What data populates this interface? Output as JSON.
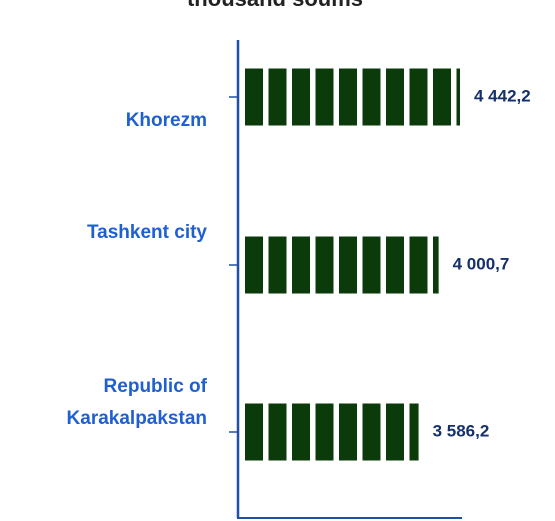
{
  "chart_data": {
    "type": "bar",
    "orientation": "horizontal",
    "title": "thousand soums",
    "categories": [
      "Khorezm",
      "Tashkent city",
      "Republic of Karakalpakstan"
    ],
    "values": [
      4442.2,
      4000.7,
      3586.2
    ],
    "value_labels": [
      "4 442,2",
      "4 000,7",
      "3 586,2"
    ],
    "color": "#0b3a0b"
  }
}
